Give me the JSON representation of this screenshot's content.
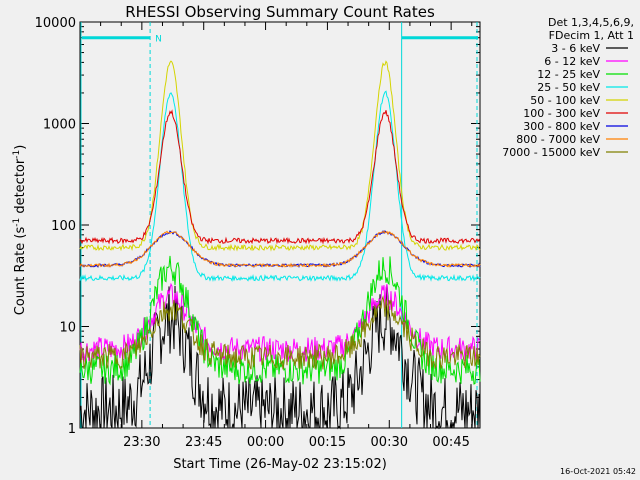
{
  "chart_data": {
    "type": "line",
    "title": "RHESSI Observing Summary Count Rates",
    "xlabel": "Start Time (26-May-02 23:15:02)",
    "ylabel_main": "Count Rate (s",
    "ylabel_sup1": "-1",
    "ylabel_mid": " detector",
    "ylabel_sup2": "-1",
    "ylabel_end": ")",
    "yscale": "log",
    "ylim": [
      1,
      10000
    ],
    "xlim_minutes": [
      0,
      97
    ],
    "xtick_labels": [
      "23:30",
      "23:45",
      "00:00",
      "00:15",
      "00:30",
      "00:45"
    ],
    "xtick_minutes": [
      15,
      30,
      45,
      60,
      75,
      90
    ],
    "ytick_labels": [
      "1",
      "10",
      "100",
      "1000",
      "10000"
    ],
    "ytick_values": [
      1,
      10,
      100,
      1000,
      10000
    ],
    "legend_header_1": "Det 1,3,4,5,6,9,",
    "legend_header_2": "FDecim 1, Att 1",
    "legend_position": "right",
    "night_label": "N",
    "timestamp": "16-Oct-2021 05:42",
    "series": [
      {
        "name": "3 - 6 keV",
        "color": "#000000",
        "baseline": 1.5,
        "peak": 12,
        "noise": 0.7
      },
      {
        "name": "6 - 12 keV",
        "color": "#ff00ff",
        "baseline": 6,
        "peak": 20,
        "noise": 0.25
      },
      {
        "name": "12 - 25 keV",
        "color": "#00e000",
        "baseline": 3.8,
        "peak": 38,
        "noise": 0.3
      },
      {
        "name": "25 - 50 keV",
        "color": "#00e8e8",
        "baseline": 30,
        "peak": 2000,
        "noise": 0.05
      },
      {
        "name": "50 - 100 keV",
        "color": "#d4d400",
        "baseline": 60,
        "peak": 4000,
        "noise": 0.05
      },
      {
        "name": "100 - 300 keV",
        "color": "#e00000",
        "baseline": 70,
        "peak": 1300,
        "noise": 0.05
      },
      {
        "name": "300 - 800 keV",
        "color": "#0000e0",
        "baseline": 40,
        "peak": 85,
        "noise": 0.03
      },
      {
        "name": "800 - 7000 keV",
        "color": "#ff8000",
        "baseline": 40,
        "peak": 85,
        "noise": 0.03
      },
      {
        "name": "7000 - 15000 keV",
        "color": "#808000",
        "baseline": 5,
        "peak": 15,
        "noise": 0.25
      }
    ],
    "flare_peaks_minutes": [
      22,
      74
    ],
    "intervals": [
      {
        "label": "N",
        "start": 0,
        "end": 17
      },
      {
        "label": "",
        "start": 78,
        "end": 97
      }
    ]
  }
}
